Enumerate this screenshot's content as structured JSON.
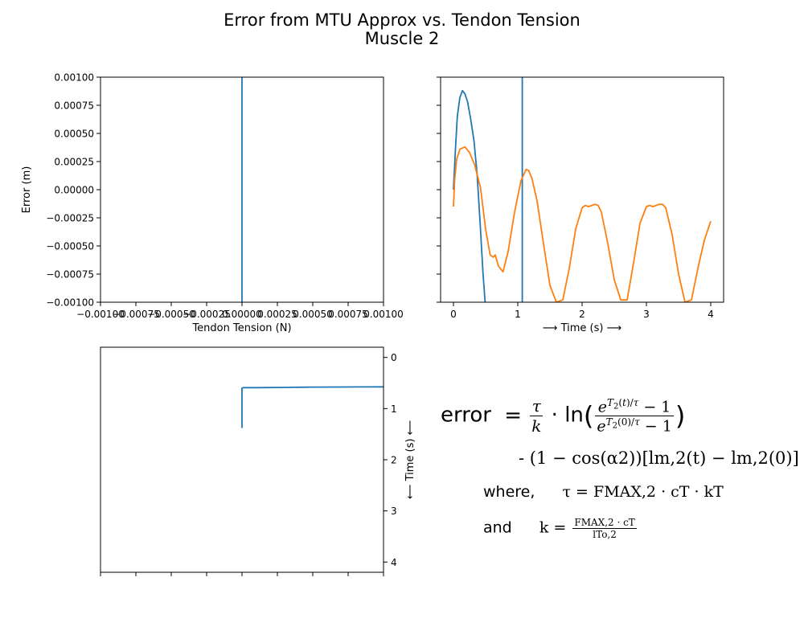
{
  "figure": {
    "title_line1": "Error from MTU Approx vs. Tendon Tension",
    "title_line2": "Muscle 2"
  },
  "colors": {
    "blue": "#1f77b4",
    "orange": "#ff7f0e"
  },
  "chart_data": [
    {
      "id": "top-left",
      "type": "line",
      "xlabel": "Tendon Tension (N)",
      "ylabel": "Error (m)",
      "xlim": [
        -0.001,
        0.001
      ],
      "ylim": [
        -0.001,
        0.001
      ],
      "xticks": [
        "−0.00100",
        "−0.00075",
        "−0.00050",
        "−0.00025",
        "0.00000",
        "0.00025",
        "0.00050",
        "0.00075",
        "0.00100"
      ],
      "yticks": [
        "−0.00100",
        "−0.00075",
        "−0.00050",
        "−0.00025",
        "0.00000",
        "0.00025",
        "0.00050",
        "0.00075",
        "0.00100"
      ],
      "series": [
        {
          "color": "blue",
          "x": [
            0.0,
            0.0
          ],
          "y": [
            -0.001,
            0.001
          ]
        }
      ]
    },
    {
      "id": "top-right",
      "type": "line",
      "xlabel": "⟶ Time (s) ⟶",
      "xlim": [
        -0.2,
        4.2
      ],
      "ylim": [
        -0.001,
        0.001
      ],
      "xticks": [
        "0",
        "1",
        "2",
        "3",
        "4"
      ],
      "series": [
        {
          "color": "blue",
          "x": [
            0,
            0.03,
            0.06,
            0.1,
            0.14,
            0.18,
            0.22,
            0.27,
            0.32,
            0.37,
            0.42,
            0.46,
            0.49,
            0.51
          ],
          "y": [
            0.0,
            0.00035,
            0.00065,
            0.00082,
            0.00088,
            0.00085,
            0.00078,
            0.00062,
            0.00043,
            0.00012,
            -0.00035,
            -0.00075,
            -0.00098,
            -0.0011
          ]
        },
        {
          "color": "blue",
          "x": [
            1.07,
            1.07
          ],
          "y": [
            -0.00105,
            0.00105
          ]
        },
        {
          "color": "orange",
          "x": [
            0,
            0.02,
            0.05,
            0.1,
            0.18,
            0.25,
            0.33,
            0.42,
            0.5,
            0.57,
            0.62,
            0.65,
            0.7,
            0.77,
            0.85,
            0.95,
            1.05,
            1.13,
            1.17,
            1.22,
            1.3,
            1.4,
            1.5,
            1.6,
            1.7,
            1.8,
            1.9,
            2.0,
            2.05,
            2.1,
            2.15,
            2.2,
            2.25,
            2.3,
            2.4,
            2.5,
            2.6,
            2.7,
            2.8,
            2.9,
            3.0,
            3.05,
            3.1,
            3.15,
            3.2,
            3.25,
            3.3,
            3.4,
            3.5,
            3.6,
            3.7,
            3.8,
            3.9,
            4.0
          ],
          "y": [
            -0.00015,
            0.0001,
            0.00027,
            0.00036,
            0.00038,
            0.00033,
            0.00022,
            2e-05,
            -0.00035,
            -0.00058,
            -0.0006,
            -0.00058,
            -0.00068,
            -0.00073,
            -0.00055,
            -0.0002,
            8e-05,
            0.00018,
            0.00017,
            0.0001,
            -0.0001,
            -0.00048,
            -0.00085,
            -0.001,
            -0.00098,
            -0.0007,
            -0.00035,
            -0.00016,
            -0.00014,
            -0.00015,
            -0.00014,
            -0.00013,
            -0.00014,
            -0.0002,
            -0.00048,
            -0.0008,
            -0.00098,
            -0.00098,
            -0.00065,
            -0.0003,
            -0.00015,
            -0.00014,
            -0.00015,
            -0.00014,
            -0.00013,
            -0.00013,
            -0.00016,
            -0.0004,
            -0.00075,
            -0.001,
            -0.00098,
            -0.0007,
            -0.00045,
            -0.00028
          ]
        }
      ]
    },
    {
      "id": "bottom-left",
      "type": "line",
      "ylabel": "⟵ Time (s) ⟵",
      "xlim": [
        -0.001,
        0.001
      ],
      "ylim": [
        4.2,
        -0.2
      ],
      "yticks": [
        "0",
        "1",
        "2",
        "3",
        "4"
      ],
      "series": [
        {
          "color": "blue",
          "x": [
            0.0,
            0.0,
            1e-05,
            0.0001,
            0.0003,
            0.0005,
            0.0007,
            0.00085,
            0.001
          ],
          "y": [
            1.38,
            0.6,
            0.59,
            0.59,
            0.585,
            0.58,
            0.578,
            0.576,
            0.575
          ]
        }
      ]
    }
  ],
  "equation": {
    "lhs": "error",
    "ln": "ln",
    "tau": "τ",
    "k": "k",
    "line2": "- (1 − cos(α2))[lm,2(t) − lm,2(0)]",
    "where": "where,",
    "tau_def": "τ = FMAX,2 · cT · kT",
    "and": "and",
    "k_def_lhs": "k =",
    "k_num": "FMAX,2 · cT",
    "k_den": "lTo,2"
  }
}
